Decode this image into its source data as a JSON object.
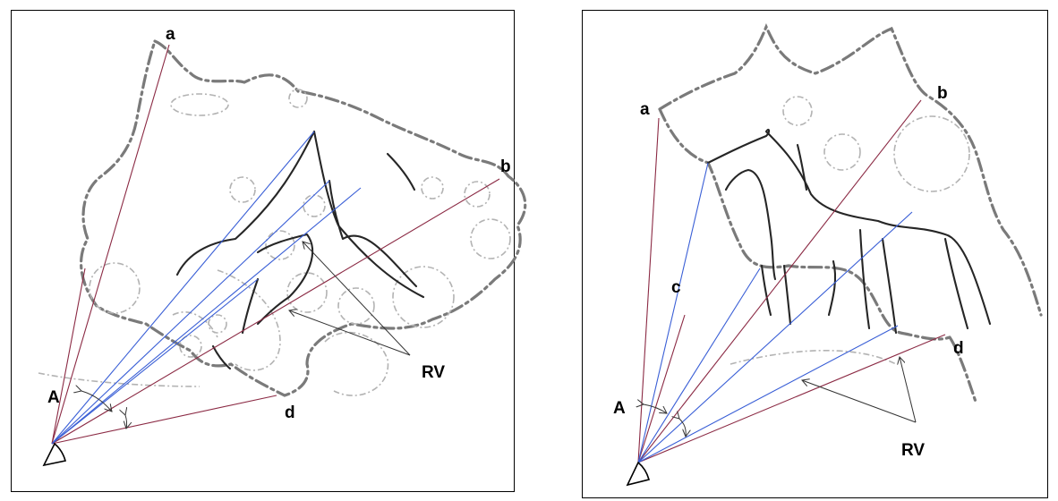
{
  "figure": {
    "panels": [
      {
        "id": "left",
        "labels": {
          "a": "a",
          "b": "b",
          "d": "d",
          "A": "A",
          "RV": "RV"
        }
      },
      {
        "id": "right",
        "labels": {
          "a": "a",
          "b": "b",
          "c": "c",
          "d": "d",
          "A": "A",
          "RV": "RV"
        }
      }
    ],
    "colors": {
      "outer_rays": "#8b2a44",
      "inner_rays": "#3a5fd6",
      "outline": "#7a7a7a",
      "engraving": "#262626"
    }
  }
}
